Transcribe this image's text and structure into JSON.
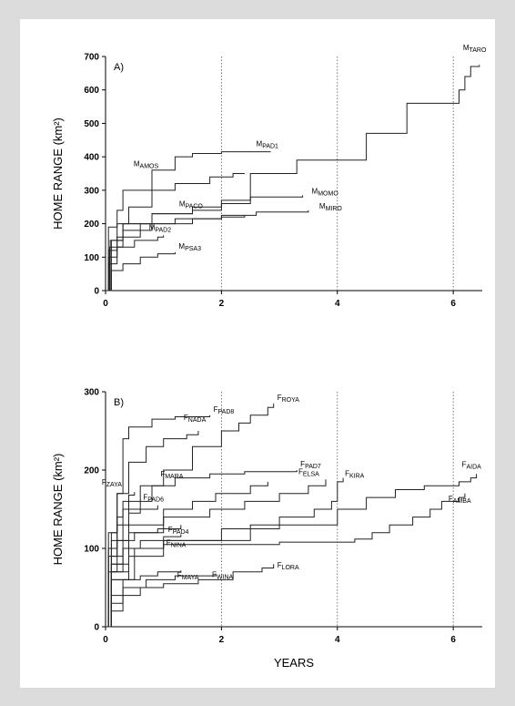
{
  "chart_data": [
    {
      "type": "line",
      "panel_label": "A)",
      "ylabel": "HOME RANGE (km²)",
      "ylim": [
        0,
        700
      ],
      "yticks": [
        0,
        100,
        200,
        300,
        400,
        500,
        600,
        700
      ],
      "xlim": [
        0,
        6.5
      ],
      "xticks": [
        0,
        2,
        4,
        6
      ],
      "reference_lines_x": [
        2,
        4,
        6
      ],
      "series": [
        {
          "name_main": "M",
          "name_sub": "TARO",
          "points": [
            [
              0,
              0
            ],
            [
              0.1,
              150
            ],
            [
              0.3,
              200
            ],
            [
              0.8,
              230
            ],
            [
              1.5,
              240
            ],
            [
              2.0,
              260
            ],
            [
              2.5,
              350
            ],
            [
              3.3,
              390
            ],
            [
              4.5,
              470
            ],
            [
              5.2,
              560
            ],
            [
              6.1,
              600
            ],
            [
              6.2,
              640
            ],
            [
              6.3,
              670
            ],
            [
              6.45,
              675
            ]
          ]
        },
        {
          "name_main": "M",
          "name_sub": "PAD1",
          "points": [
            [
              0,
              0
            ],
            [
              0.05,
              190
            ],
            [
              0.2,
              240
            ],
            [
              0.3,
              300
            ],
            [
              0.8,
              360
            ],
            [
              1.2,
              400
            ],
            [
              1.5,
              410
            ],
            [
              2.0,
              415
            ],
            [
              2.85,
              415
            ]
          ]
        },
        {
          "name_main": "M",
          "name_sub": "AMOS",
          "points": [
            [
              0,
              0
            ],
            [
              0.05,
              120
            ],
            [
              0.2,
              200
            ],
            [
              0.4,
              250
            ],
            [
              0.8,
              300
            ],
            [
              1.2,
              320
            ],
            [
              1.8,
              340
            ],
            [
              2.2,
              350
            ],
            [
              2.4,
              350
            ]
          ]
        },
        {
          "name_main": "M",
          "name_sub": "MOMO",
          "points": [
            [
              0,
              0
            ],
            [
              0.08,
              150
            ],
            [
              0.3,
              200
            ],
            [
              0.8,
              230
            ],
            [
              1.5,
              250
            ],
            [
              2.0,
              270
            ],
            [
              2.5,
              280
            ],
            [
              3.4,
              285
            ]
          ]
        },
        {
          "name_main": "M",
          "name_sub": "MIRO",
          "points": [
            [
              0,
              0
            ],
            [
              0.05,
              100
            ],
            [
              0.2,
              160
            ],
            [
              0.6,
              200
            ],
            [
              1.2,
              215
            ],
            [
              2.0,
              225
            ],
            [
              2.6,
              235
            ],
            [
              3.5,
              240
            ]
          ]
        },
        {
          "name_main": "M",
          "name_sub": "PACO",
          "points": [
            [
              0,
              0
            ],
            [
              0.07,
              130
            ],
            [
              0.3,
              180
            ],
            [
              0.8,
              200
            ],
            [
              1.5,
              215
            ],
            [
              2.0,
              220
            ],
            [
              2.4,
              225
            ]
          ]
        },
        {
          "name_main": "M",
          "name_sub": "PAD2",
          "points": [
            [
              0,
              0
            ],
            [
              0.05,
              80
            ],
            [
              0.2,
              130
            ],
            [
              0.5,
              150
            ],
            [
              0.9,
              160
            ],
            [
              1.0,
              165
            ]
          ]
        },
        {
          "name_main": "M",
          "name_sub": "PSA3",
          "points": [
            [
              0,
              0
            ],
            [
              0.1,
              60
            ],
            [
              0.3,
              80
            ],
            [
              0.6,
              100
            ],
            [
              0.9,
              110
            ],
            [
              1.2,
              115
            ]
          ]
        }
      ]
    },
    {
      "type": "line",
      "panel_label": "B)",
      "xlabel": "YEARS",
      "ylabel": "HOME RANGE (km²)",
      "ylim": [
        0,
        300
      ],
      "yticks": [
        0,
        100,
        200,
        300
      ],
      "xlim": [
        0,
        6.5
      ],
      "xticks": [
        0,
        2,
        4,
        6
      ],
      "reference_lines_x": [
        2,
        4,
        6
      ],
      "series": [
        {
          "name_main": "F",
          "name_sub": "PAD8",
          "points": [
            [
              0,
              0
            ],
            [
              0.1,
              120
            ],
            [
              0.2,
              170
            ],
            [
              0.3,
              240
            ],
            [
              0.4,
              255
            ],
            [
              0.8,
              265
            ],
            [
              1.2,
              268
            ],
            [
              1.8,
              270
            ]
          ]
        },
        {
          "name_main": "F",
          "name_sub": "ROYA",
          "points": [
            [
              0,
              0
            ],
            [
              0.1,
              90
            ],
            [
              0.3,
              150
            ],
            [
              0.6,
              180
            ],
            [
              1.0,
              200
            ],
            [
              1.5,
              230
            ],
            [
              2.0,
              250
            ],
            [
              2.3,
              260
            ],
            [
              2.5,
              270
            ],
            [
              2.8,
              280
            ],
            [
              2.9,
              285
            ]
          ]
        },
        {
          "name_main": "F",
          "name_sub": "NADA",
          "points": [
            [
              0,
              0
            ],
            [
              0.05,
              120
            ],
            [
              0.2,
              170
            ],
            [
              0.4,
              210
            ],
            [
              0.7,
              230
            ],
            [
              1.0,
              240
            ],
            [
              1.4,
              245
            ],
            [
              1.6,
              250
            ]
          ]
        },
        {
          "name_main": "F",
          "name_sub": "PAD7",
          "points": [
            [
              0,
              0
            ],
            [
              0.1,
              110
            ],
            [
              0.4,
              160
            ],
            [
              0.8,
              180
            ],
            [
              1.2,
              190
            ],
            [
              1.8,
              195
            ],
            [
              2.4,
              198
            ],
            [
              3.3,
              200
            ]
          ]
        },
        {
          "name_main": "F",
          "name_sub": "MARA",
          "points": [
            [
              0,
              0
            ],
            [
              0.1,
              80
            ],
            [
              0.4,
              130
            ],
            [
              1.0,
              150
            ],
            [
              1.5,
              160
            ],
            [
              1.9,
              170
            ],
            [
              2.5,
              180
            ],
            [
              2.8,
              185
            ]
          ]
        },
        {
          "name_main": "F",
          "name_sub": "ELSA",
          "points": [
            [
              0,
              0
            ],
            [
              0.1,
              70
            ],
            [
              0.4,
              120
            ],
            [
              1.0,
              140
            ],
            [
              1.8,
              150
            ],
            [
              2.4,
              160
            ],
            [
              3.0,
              170
            ],
            [
              3.5,
              180
            ],
            [
              3.8,
              188
            ]
          ]
        },
        {
          "name_main": "F",
          "name_sub": "KIRA",
          "points": [
            [
              0,
              0
            ],
            [
              0.1,
              60
            ],
            [
              0.5,
              100
            ],
            [
              1.0,
              110
            ],
            [
              2.0,
              125
            ],
            [
              3.0,
              140
            ],
            [
              3.6,
              150
            ],
            [
              3.9,
              160
            ],
            [
              4.0,
              185
            ],
            [
              4.1,
              190
            ]
          ]
        },
        {
          "name_main": "F",
          "name_sub": "AIDA",
          "points": [
            [
              0,
              0
            ],
            [
              0.1,
              70
            ],
            [
              0.3,
              100
            ],
            [
              1.0,
              110
            ],
            [
              2.5,
              130
            ],
            [
              4.0,
              150
            ],
            [
              4.5,
              165
            ],
            [
              5.0,
              175
            ],
            [
              5.5,
              180
            ],
            [
              6.1,
              185
            ],
            [
              6.3,
              190
            ],
            [
              6.4,
              195
            ]
          ]
        },
        {
          "name_main": "F",
          "name_sub": "AMBA",
          "points": [
            [
              0,
              0
            ],
            [
              0.1,
              60
            ],
            [
              0.4,
              90
            ],
            [
              1.0,
              105
            ],
            [
              3.0,
              108
            ],
            [
              4.3,
              112
            ],
            [
              4.6,
              120
            ],
            [
              4.9,
              130
            ],
            [
              5.3,
              140
            ],
            [
              5.6,
              150
            ],
            [
              5.8,
              160
            ],
            [
              6.1,
              165
            ],
            [
              6.2,
              170
            ]
          ]
        },
        {
          "name_main": "F",
          "name_sub": "ZAYA",
          "points": [
            [
              0,
              0
            ],
            [
              0.05,
              100
            ],
            [
              0.2,
              140
            ],
            [
              0.3,
              160
            ],
            [
              0.4,
              168
            ],
            [
              0.5,
              172
            ]
          ]
        },
        {
          "name_main": "F",
          "name_sub": "PAD6",
          "points": [
            [
              0,
              0
            ],
            [
              0.05,
              90
            ],
            [
              0.2,
              130
            ],
            [
              0.4,
              145
            ],
            [
              0.6,
              150
            ],
            [
              0.9,
              155
            ]
          ]
        },
        {
          "name_main": "F",
          "name_sub": "PAD4",
          "points": [
            [
              0,
              0
            ],
            [
              0.05,
              70
            ],
            [
              0.2,
              110
            ],
            [
              0.5,
              120
            ],
            [
              0.9,
              125
            ],
            [
              1.3,
              130
            ]
          ]
        },
        {
          "name_main": "F",
          "name_sub": "NINA",
          "points": [
            [
              0,
              0
            ],
            [
              0.1,
              80
            ],
            [
              0.3,
              100
            ],
            [
              0.6,
              110
            ],
            [
              1.0,
              115
            ],
            [
              1.3,
              118
            ]
          ]
        },
        {
          "name_main": "F",
          "name_sub": "MAYA",
          "points": [
            [
              0,
              0
            ],
            [
              0.1,
              40
            ],
            [
              0.3,
              60
            ],
            [
              0.6,
              65
            ],
            [
              0.9,
              70
            ],
            [
              1.3,
              72
            ]
          ]
        },
        {
          "name_main": "F",
          "name_sub": "WINA",
          "points": [
            [
              0,
              0
            ],
            [
              0.1,
              30
            ],
            [
              0.3,
              50
            ],
            [
              0.7,
              60
            ],
            [
              1.2,
              65
            ],
            [
              1.9,
              68
            ]
          ]
        },
        {
          "name_main": "F",
          "name_sub": "LORA",
          "points": [
            [
              0,
              0
            ],
            [
              0.1,
              20
            ],
            [
              0.3,
              40
            ],
            [
              0.6,
              50
            ],
            [
              1.0,
              55
            ],
            [
              1.6,
              60
            ],
            [
              2.2,
              70
            ],
            [
              2.7,
              75
            ],
            [
              2.9,
              80
            ]
          ]
        }
      ]
    }
  ]
}
